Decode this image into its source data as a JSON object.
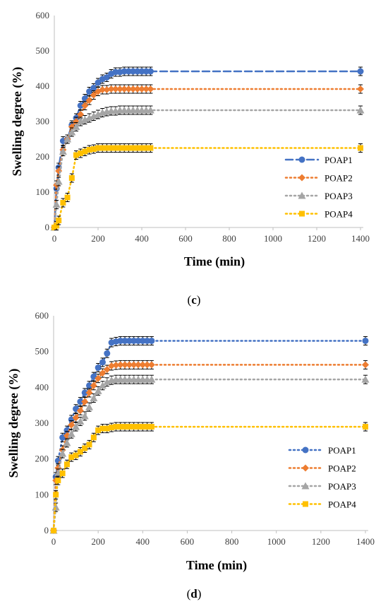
{
  "chart_data": [
    {
      "type": "line",
      "panel_label": "(c)",
      "panel_letter": "c",
      "xlabel": "Time (min)",
      "ylabel": "Swelling degree (%)",
      "ylim": [
        0,
        600
      ],
      "y_ticks": [
        "0",
        "100",
        "200",
        "300",
        "400",
        "500",
        "600"
      ],
      "x_ticks": [
        "0",
        "200",
        "400",
        "600",
        "800",
        "1000",
        "1200",
        "1400"
      ],
      "x": [
        0,
        10,
        20,
        40,
        60,
        80,
        100,
        120,
        140,
        160,
        180,
        200,
        220,
        240,
        260,
        280,
        300,
        320,
        340,
        360,
        380,
        400,
        420,
        440,
        1400
      ],
      "legend_position": "right",
      "series": [
        {
          "name": "POAP1",
          "color": "#4472C4",
          "marker": "circle",
          "dash": "10,5",
          "values": [
            0,
            110,
            170,
            245,
            250,
            290,
            310,
            345,
            365,
            385,
            395,
            410,
            420,
            425,
            435,
            440,
            440,
            442,
            442,
            442,
            442,
            442,
            442,
            442,
            442
          ]
        },
        {
          "name": "POAP2",
          "color": "#ED7D31",
          "marker": "diamond",
          "dash": "2,4",
          "values": [
            0,
            120,
            160,
            220,
            250,
            285,
            300,
            320,
            345,
            360,
            375,
            385,
            390,
            390,
            392,
            392,
            392,
            392,
            392,
            392,
            392,
            392,
            392,
            392,
            392
          ]
        },
        {
          "name": "POAP3",
          "color": "#A5A5A5",
          "marker": "triangle",
          "dash": "2,4",
          "values": [
            0,
            65,
            130,
            215,
            250,
            270,
            285,
            300,
            305,
            310,
            315,
            320,
            325,
            328,
            330,
            330,
            332,
            332,
            332,
            332,
            332,
            332,
            332,
            332,
            332
          ]
        },
        {
          "name": "POAP4",
          "color": "#FFC000",
          "marker": "square",
          "dash": "2,4",
          "values": [
            0,
            5,
            20,
            70,
            85,
            140,
            205,
            210,
            215,
            220,
            222,
            225,
            225,
            225,
            225,
            225,
            225,
            225,
            225,
            225,
            225,
            225,
            225,
            225,
            225
          ]
        }
      ]
    },
    {
      "type": "line",
      "panel_label": "(d)",
      "panel_letter": "d",
      "xlabel": "Time (min)",
      "ylabel": "Swelling degree (%)",
      "ylim": [
        0,
        600
      ],
      "y_ticks": [
        "0",
        "100",
        "200",
        "300",
        "400",
        "500",
        "600"
      ],
      "x_ticks": [
        "0",
        "200",
        "400",
        "600",
        "800",
        "1000",
        "1200",
        "1400"
      ],
      "x": [
        0,
        10,
        20,
        40,
        60,
        80,
        100,
        120,
        140,
        160,
        180,
        200,
        220,
        240,
        260,
        280,
        300,
        320,
        340,
        360,
        380,
        400,
        420,
        440,
        1400
      ],
      "legend_position": "right",
      "series": [
        {
          "name": "POAP1",
          "color": "#4472C4",
          "marker": "circle",
          "dash": "2,4",
          "values": [
            0,
            150,
            195,
            260,
            280,
            310,
            340,
            360,
            385,
            405,
            430,
            455,
            470,
            495,
            525,
            528,
            530,
            530,
            530,
            530,
            530,
            530,
            530,
            530,
            530
          ]
        },
        {
          "name": "POAP2",
          "color": "#ED7D31",
          "marker": "diamond",
          "dash": "2,4",
          "values": [
            0,
            140,
            175,
            225,
            265,
            295,
            315,
            335,
            360,
            385,
            405,
            425,
            440,
            450,
            460,
            462,
            463,
            463,
            463,
            463,
            463,
            463,
            463,
            463,
            463
          ]
        },
        {
          "name": "POAP3",
          "color": "#A5A5A5",
          "marker": "triangle",
          "dash": "2,4",
          "values": [
            0,
            65,
            160,
            215,
            245,
            270,
            290,
            305,
            320,
            345,
            370,
            390,
            405,
            415,
            420,
            422,
            422,
            422,
            422,
            422,
            422,
            422,
            422,
            422,
            422
          ]
        },
        {
          "name": "POAP4",
          "color": "#FFC000",
          "marker": "square",
          "dash": "2,4",
          "values": [
            0,
            100,
            140,
            160,
            185,
            205,
            210,
            220,
            230,
            240,
            260,
            280,
            285,
            285,
            288,
            290,
            290,
            290,
            290,
            290,
            290,
            290,
            290,
            290,
            290
          ]
        }
      ]
    }
  ]
}
